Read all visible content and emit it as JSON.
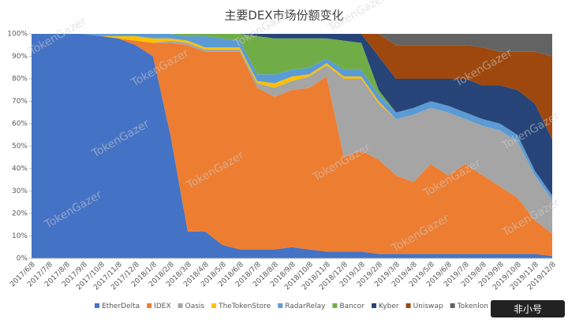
{
  "chart_data": {
    "type": "stacked_area",
    "title": "主要DEX市场份额变化",
    "x": [
      "2017/6/8",
      "2017/7/8",
      "2017/8/8",
      "2017/9/8",
      "2017/10/8",
      "2017/11/8",
      "2017/12/8",
      "2018/1/8",
      "2018/2/8",
      "2018/3/8",
      "2018/4/8",
      "2018/5/8",
      "2018/6/8",
      "2018/7/8",
      "2018/8/8",
      "2018/9/8",
      "2018/10/8",
      "2018/11/8",
      "2018/12/8",
      "2019/1/8",
      "2019/2/8",
      "2019/3/8",
      "2019/4/8",
      "2019/5/8",
      "2019/6/8",
      "2019/7/8",
      "2019/8/8",
      "2019/9/8",
      "2019/10/8",
      "2019/11/8",
      "2019/12/8"
    ],
    "series": [
      {
        "name": "EtherDelta",
        "color": "#4472c4",
        "values": [
          100,
          100,
          100,
          100,
          99,
          98,
          95,
          90,
          55,
          12,
          12,
          6,
          4,
          4,
          4,
          5,
          4,
          3,
          3,
          3,
          2,
          2,
          2,
          2,
          2,
          2,
          2,
          2,
          2,
          2,
          1
        ]
      },
      {
        "name": "IDEX",
        "color": "#ed7d31",
        "values": [
          0,
          0,
          0,
          0,
          0,
          0,
          2,
          6,
          41,
          83,
          80,
          86,
          88,
          72,
          68,
          70,
          72,
          78,
          42,
          45,
          42,
          35,
          32,
          40,
          35,
          40,
          35,
          30,
          25,
          15,
          10
        ]
      },
      {
        "name": "Oasis",
        "color": "#a5a5a5",
        "values": [
          0,
          0,
          0,
          0,
          0,
          0,
          0,
          0,
          1,
          1,
          1,
          1,
          1,
          2,
          4,
          4,
          5,
          5,
          35,
          32,
          25,
          25,
          30,
          25,
          28,
          20,
          22,
          25,
          25,
          20,
          15
        ]
      },
      {
        "name": "TheTokenStore",
        "color": "#ffc000",
        "values": [
          0,
          0,
          0,
          0,
          0,
          1,
          2,
          2,
          1,
          1,
          1,
          1,
          1,
          1,
          2,
          2,
          1,
          1,
          1,
          1,
          1,
          0,
          0,
          0,
          0,
          0,
          0,
          0,
          0,
          0,
          0
        ]
      },
      {
        "name": "RadarRelay",
        "color": "#5b9bd5",
        "values": [
          0,
          0,
          0,
          0,
          1,
          1,
          1,
          2,
          2,
          2,
          5,
          4,
          3,
          3,
          4,
          3,
          3,
          2,
          3,
          3,
          3,
          3,
          3,
          3,
          3,
          3,
          3,
          3,
          3,
          2,
          2
        ]
      },
      {
        "name": "Bancor",
        "color": "#70ad47",
        "values": [
          0,
          0,
          0,
          0,
          0,
          0,
          0,
          0,
          0,
          1,
          1,
          2,
          3,
          17,
          16,
          14,
          13,
          9,
          13,
          12,
          2,
          0,
          0,
          0,
          0,
          0,
          0,
          0,
          0,
          0,
          0
        ]
      },
      {
        "name": "Kyber",
        "color": "#264478",
        "values": [
          0,
          0,
          0,
          0,
          0,
          0,
          0,
          0,
          0,
          0,
          0,
          0,
          0,
          1,
          2,
          2,
          2,
          2,
          3,
          4,
          15,
          15,
          13,
          10,
          12,
          15,
          15,
          17,
          20,
          30,
          25
        ]
      },
      {
        "name": "Uniswap",
        "color": "#9e480e",
        "values": [
          0,
          0,
          0,
          0,
          0,
          0,
          0,
          0,
          0,
          0,
          0,
          0,
          0,
          0,
          0,
          0,
          0,
          0,
          0,
          0,
          10,
          15,
          15,
          15,
          15,
          15,
          17,
          15,
          17,
          23,
          37
        ]
      },
      {
        "name": "Tokenlon",
        "color": "#636363",
        "values": [
          0,
          0,
          0,
          0,
          0,
          0,
          0,
          0,
          0,
          0,
          0,
          0,
          0,
          0,
          0,
          0,
          0,
          0,
          0,
          0,
          0,
          5,
          5,
          5,
          5,
          5,
          6,
          8,
          8,
          8,
          10
        ]
      }
    ],
    "ylim": [
      0,
      100
    ],
    "yticks": [
      {
        "value": 0,
        "label": "0%"
      },
      {
        "value": 10,
        "label": "10%"
      },
      {
        "value": 20,
        "label": "20%"
      },
      {
        "value": 30,
        "label": "30%"
      },
      {
        "value": 40,
        "label": "40%"
      },
      {
        "value": 50,
        "label": "50%"
      },
      {
        "value": 60,
        "label": "60%"
      },
      {
        "value": 70,
        "label": "70%"
      },
      {
        "value": 80,
        "label": "80%"
      },
      {
        "value": 90,
        "label": "90%"
      },
      {
        "value": 100,
        "label": "100%"
      }
    ],
    "legend": "bottom",
    "watermark": "TokenGazer",
    "logo_text": "非小号"
  }
}
